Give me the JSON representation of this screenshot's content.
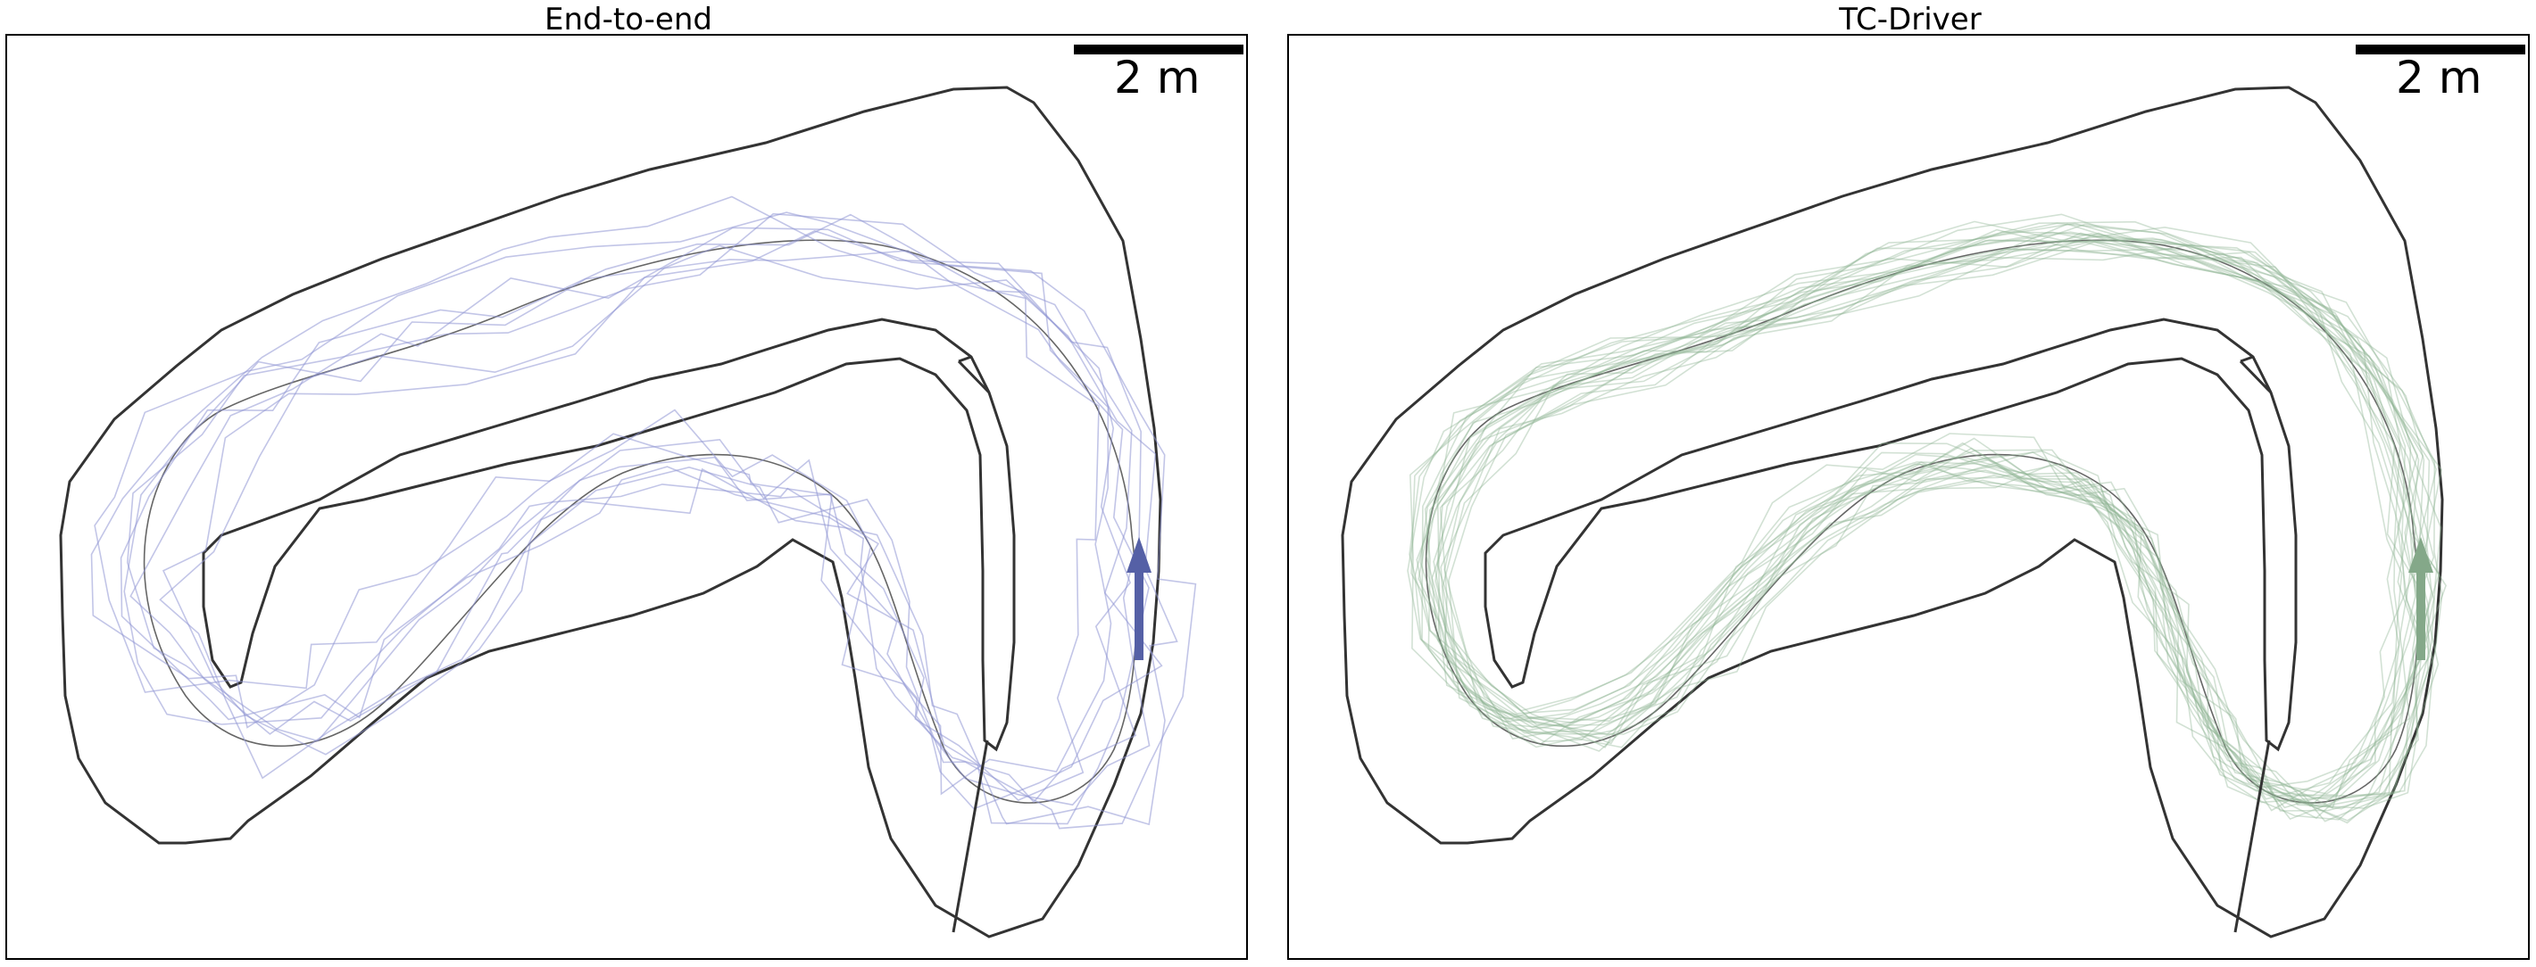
{
  "panels": [
    {
      "title": "End-to-end",
      "scale_label": "2 m",
      "trajectory_color": "#8f96d4",
      "arrow_color": "#5560a6",
      "trajectory_count": 8
    },
    {
      "title": "TC-Driver",
      "scale_label": "2 m",
      "trajectory_color": "#8fb594",
      "arrow_color": "#84a889",
      "trajectory_count": 22
    }
  ],
  "colors": {
    "track_boundary": "#333333",
    "raceline": "#666666",
    "frame": "#000000",
    "scale_bar": "#000000"
  }
}
